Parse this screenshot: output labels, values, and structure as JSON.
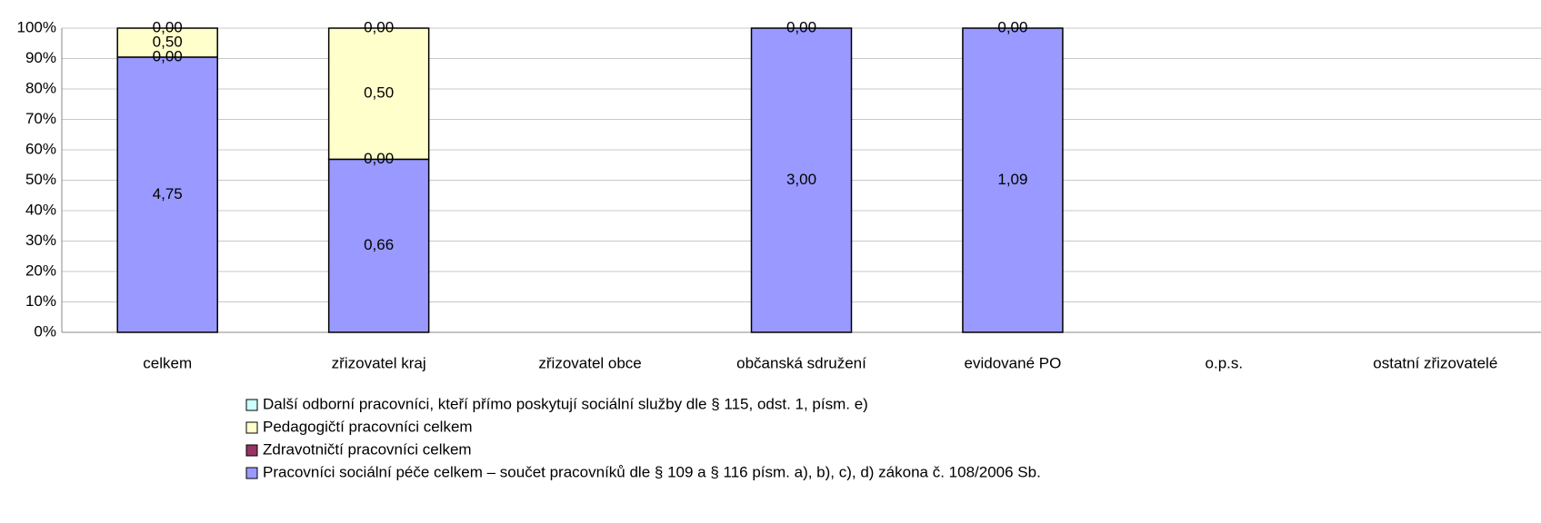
{
  "chart_data": {
    "type": "stacked-percent-bar",
    "categories": [
      "celkem",
      "zřizovatel kraj",
      "zřizovatel obce",
      "občanská sdružení",
      "evidované PO",
      "o.p.s.",
      "ostatní zřizovatelé"
    ],
    "series": [
      {
        "name": "Pracovníci sociální péče celkem – součet pracovníků dle § 109 a § 116 písm. a), b), c), d) zákona č. 108/2006 Sb.",
        "color": "#9999ff",
        "values": [
          4.75,
          0.66,
          null,
          3.0,
          1.09,
          null,
          null
        ],
        "value_labels": [
          "4,75",
          "0,66",
          null,
          "3,00",
          "1,09",
          null,
          null
        ]
      },
      {
        "name": "Zdravotničtí pracovníci celkem",
        "color": "#993366",
        "values": [
          0,
          0,
          null,
          null,
          null,
          null,
          null
        ],
        "value_labels": [
          "0,00",
          "0,00",
          null,
          null,
          null,
          null,
          null
        ]
      },
      {
        "name": "Pedagogičtí pracovníci celkem",
        "color": "#ffffcc",
        "values": [
          0.5,
          0.5,
          null,
          null,
          null,
          null,
          null
        ],
        "value_labels": [
          "0,50",
          "0,50",
          null,
          null,
          null,
          null,
          null
        ]
      },
      {
        "name": "Další odborní pracovníci, kteří přímo poskytují sociální služby dle § 115, odst. 1, písm. e)",
        "color": "#ccffff",
        "values": [
          0,
          0,
          null,
          0,
          0,
          null,
          null
        ],
        "value_labels": [
          "0,00",
          "0,00",
          null,
          "0,00",
          "0,00",
          null,
          null
        ]
      }
    ],
    "ylim": [
      0,
      100
    ],
    "yticks": [
      {
        "value": 0,
        "label": "0%"
      },
      {
        "value": 10,
        "label": "10%"
      },
      {
        "value": 20,
        "label": "20%"
      },
      {
        "value": 30,
        "label": "30%"
      },
      {
        "value": 40,
        "label": "40%"
      },
      {
        "value": 50,
        "label": "50%"
      },
      {
        "value": 60,
        "label": "60%"
      },
      {
        "value": 70,
        "label": "70%"
      },
      {
        "value": 80,
        "label": "80%"
      },
      {
        "value": 90,
        "label": "90%"
      },
      {
        "value": 100,
        "label": "100%"
      }
    ],
    "grid": true
  }
}
